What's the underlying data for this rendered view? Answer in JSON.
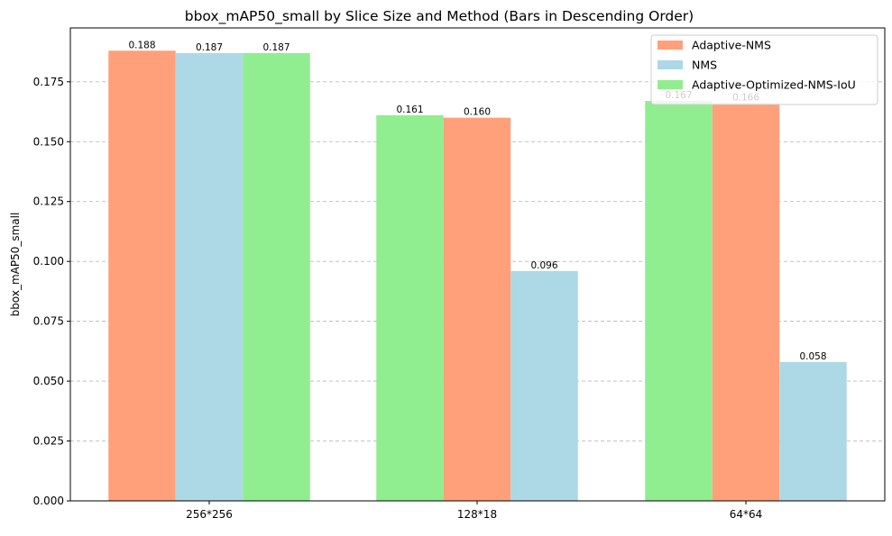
{
  "chart_data": {
    "type": "bar",
    "title": "bbox_mAP50_small by Slice Size and Method (Bars in Descending Order)",
    "xlabel": "",
    "ylabel": "bbox_mAP50_small",
    "ylim": [
      0,
      0.1975
    ],
    "yticks": [
      0.0,
      0.025,
      0.05,
      0.075,
      0.1,
      0.125,
      0.15,
      0.175
    ],
    "ytick_labels": [
      "0.000",
      "0.025",
      "0.050",
      "0.075",
      "0.100",
      "0.125",
      "0.150",
      "0.175"
    ],
    "grid": "y dashed",
    "legend_position": "top-right",
    "series_legend": [
      {
        "name": "Adaptive-NMS",
        "color": "#FFA07A"
      },
      {
        "name": "NMS",
        "color": "#ADD8E6"
      },
      {
        "name": "Adaptive-Optimized-NMS-IoU",
        "color": "#90EE90"
      }
    ],
    "categories": [
      "256*256",
      "128*18",
      "64*64"
    ],
    "groups": [
      {
        "category": "256*256",
        "bars": [
          {
            "series": "Adaptive-NMS",
            "value": 0.188,
            "label": "0.188"
          },
          {
            "series": "NMS",
            "value": 0.187,
            "label": "0.187"
          },
          {
            "series": "Adaptive-Optimized-NMS-IoU",
            "value": 0.187,
            "label": "0.187"
          }
        ]
      },
      {
        "category": "128*18",
        "bars": [
          {
            "series": "Adaptive-Optimized-NMS-IoU",
            "value": 0.161,
            "label": "0.161"
          },
          {
            "series": "Adaptive-NMS",
            "value": 0.16,
            "label": "0.160"
          },
          {
            "series": "NMS",
            "value": 0.096,
            "label": "0.096"
          }
        ]
      },
      {
        "category": "64*64",
        "bars": [
          {
            "series": "Adaptive-Optimized-NMS-IoU",
            "value": 0.167,
            "label": "0.167"
          },
          {
            "series": "Adaptive-NMS",
            "value": 0.166,
            "label": "0.166"
          },
          {
            "series": "NMS",
            "value": 0.058,
            "label": "0.058"
          }
        ]
      }
    ]
  }
}
